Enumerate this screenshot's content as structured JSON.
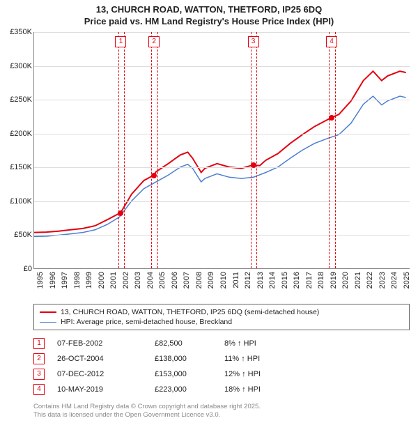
{
  "title_line1": "13, CHURCH ROAD, WATTON, THETFORD, IP25 6DQ",
  "title_line2": "Price paid vs. HM Land Registry's House Price Index (HPI)",
  "chart": {
    "type": "line",
    "background_color": "#ffffff",
    "grid_color": "#dddddd",
    "axis_color": "#888888",
    "tick_fontsize": 11,
    "x": {
      "min": 1995,
      "max": 2025.8,
      "ticks": [
        1995,
        1996,
        1997,
        1998,
        1999,
        2000,
        2001,
        2002,
        2003,
        2004,
        2005,
        2006,
        2007,
        2008,
        2009,
        2010,
        2011,
        2012,
        2013,
        2014,
        2015,
        2016,
        2017,
        2018,
        2019,
        2020,
        2021,
        2022,
        2023,
        2024,
        2025
      ]
    },
    "y": {
      "min": 0,
      "max": 350000,
      "step": 50000,
      "ticks": [
        {
          "v": 0,
          "label": "£0"
        },
        {
          "v": 50000,
          "label": "£50K"
        },
        {
          "v": 100000,
          "label": "£100K"
        },
        {
          "v": 150000,
          "label": "£150K"
        },
        {
          "v": 200000,
          "label": "£200K"
        },
        {
          "v": 250000,
          "label": "£250K"
        },
        {
          "v": 300000,
          "label": "£300K"
        },
        {
          "v": 350000,
          "label": "£350K"
        }
      ]
    },
    "series": [
      {
        "name": "price-paid",
        "label": "13, CHURCH ROAD, WATTON, THETFORD, IP25 6DQ (semi-detached house)",
        "color": "#e3000f",
        "width": 2,
        "points": [
          [
            1995,
            53000
          ],
          [
            1996,
            53500
          ],
          [
            1997,
            55000
          ],
          [
            1998,
            57000
          ],
          [
            1999,
            59000
          ],
          [
            2000,
            63000
          ],
          [
            2001,
            72000
          ],
          [
            2002.1,
            82500
          ],
          [
            2003,
            110000
          ],
          [
            2004,
            130000
          ],
          [
            2004.82,
            138000
          ],
          [
            2005,
            143000
          ],
          [
            2006,
            155000
          ],
          [
            2007,
            168000
          ],
          [
            2007.6,
            172000
          ],
          [
            2008,
            163000
          ],
          [
            2008.7,
            142000
          ],
          [
            2009,
            148000
          ],
          [
            2010,
            155000
          ],
          [
            2011,
            150000
          ],
          [
            2012,
            148000
          ],
          [
            2012.94,
            153000
          ],
          [
            2013.5,
            152000
          ],
          [
            2014,
            160000
          ],
          [
            2015,
            170000
          ],
          [
            2016,
            185000
          ],
          [
            2017,
            198000
          ],
          [
            2018,
            210000
          ],
          [
            2019.36,
            223000
          ],
          [
            2020,
            228000
          ],
          [
            2021,
            248000
          ],
          [
            2022,
            278000
          ],
          [
            2022.8,
            292000
          ],
          [
            2023.5,
            278000
          ],
          [
            2024,
            285000
          ],
          [
            2025,
            292000
          ],
          [
            2025.5,
            290000
          ]
        ]
      },
      {
        "name": "hpi",
        "label": "HPI: Average price, semi-detached house, Breckland",
        "color": "#4b7fcf",
        "width": 1.5,
        "points": [
          [
            1995,
            47000
          ],
          [
            1996,
            47500
          ],
          [
            1997,
            49000
          ],
          [
            1998,
            51000
          ],
          [
            1999,
            53000
          ],
          [
            2000,
            57000
          ],
          [
            2001,
            65000
          ],
          [
            2002,
            76000
          ],
          [
            2003,
            100000
          ],
          [
            2004,
            118000
          ],
          [
            2005,
            128000
          ],
          [
            2006,
            138000
          ],
          [
            2007,
            150000
          ],
          [
            2007.6,
            154000
          ],
          [
            2008,
            148000
          ],
          [
            2008.7,
            128000
          ],
          [
            2009,
            133000
          ],
          [
            2010,
            140000
          ],
          [
            2011,
            135000
          ],
          [
            2012,
            133000
          ],
          [
            2013,
            135000
          ],
          [
            2014,
            142000
          ],
          [
            2015,
            150000
          ],
          [
            2016,
            163000
          ],
          [
            2017,
            175000
          ],
          [
            2018,
            185000
          ],
          [
            2019,
            192000
          ],
          [
            2020,
            198000
          ],
          [
            2021,
            215000
          ],
          [
            2022,
            243000
          ],
          [
            2022.8,
            255000
          ],
          [
            2023.5,
            242000
          ],
          [
            2024,
            248000
          ],
          [
            2025,
            255000
          ],
          [
            2025.5,
            253000
          ]
        ]
      }
    ],
    "markers": {
      "color": "#e3000f",
      "radius": 4,
      "points": [
        {
          "n": 1,
          "x": 2002.1,
          "y": 82500
        },
        {
          "n": 2,
          "x": 2004.82,
          "y": 138000
        },
        {
          "n": 3,
          "x": 2012.94,
          "y": 153000
        },
        {
          "n": 4,
          "x": 2019.36,
          "y": 223000
        }
      ]
    },
    "vbands": {
      "color": "#e3000f",
      "width_years": 0.45,
      "badge_border": "#e3000f",
      "badge_text_color": "#e3000f"
    }
  },
  "legend": {
    "border_color": "#666666",
    "fontsize": 10.5
  },
  "transactions": [
    {
      "n": "1",
      "date": "07-FEB-2002",
      "price": "£82,500",
      "diff": "8% ↑ HPI"
    },
    {
      "n": "2",
      "date": "26-OCT-2004",
      "price": "£138,000",
      "diff": "11% ↑ HPI"
    },
    {
      "n": "3",
      "date": "07-DEC-2012",
      "price": "£153,000",
      "diff": "12% ↑ HPI"
    },
    {
      "n": "4",
      "date": "10-MAY-2019",
      "price": "£223,000",
      "diff": "18% ↑ HPI"
    }
  ],
  "footer_line1": "Contains HM Land Registry data © Crown copyright and database right 2025.",
  "footer_line2": "This data is licensed under the Open Government Licence v3.0.",
  "footer_color": "#888888"
}
